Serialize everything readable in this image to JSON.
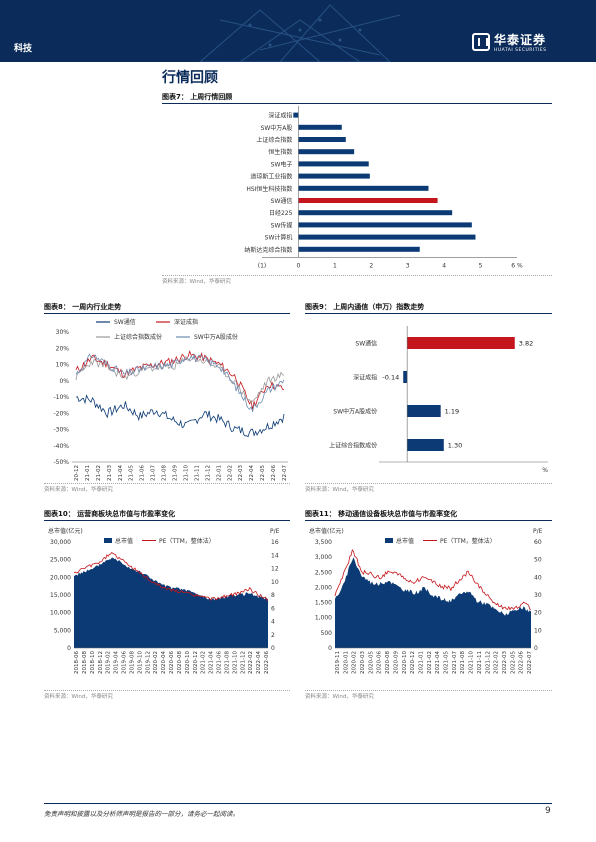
{
  "header": {
    "sector": "科技",
    "logo_cn": "华泰证券",
    "logo_en": "HUATAI SECURITIES"
  },
  "section_title": "行情回顾",
  "fig7": {
    "title": "图表7： 上周行情回顾",
    "source": "资料来源：Wind，华泰研究",
    "chart_data": {
      "type": "bar",
      "orientation": "horizontal",
      "categories": [
        "深证成指",
        "SW中万A股",
        "上证综合指数",
        "恒生指数",
        "SW电子",
        "道琼斯工业指数",
        "HSI恒生科技指数",
        "SW通信",
        "日经225",
        "SW传媒",
        "SW计算机",
        "纳斯达克综合指数"
      ],
      "values": [
        -0.14,
        1.19,
        1.3,
        1.53,
        1.93,
        1.96,
        3.57,
        3.82,
        4.22,
        4.76,
        4.86,
        3.33
      ],
      "highlight": "SW通信",
      "xlim": [
        -1,
        6
      ],
      "ticks": [
        "(1)",
        "0",
        "1",
        "2",
        "3",
        "4",
        "5",
        "6 %"
      ],
      "colors": {
        "bar": "#0b3a75",
        "highlight": "#c4161c"
      }
    }
  },
  "fig8": {
    "title": "图表8： 一周内行业走势",
    "source": "资料来源：Wind，华泰研究",
    "chart_data": {
      "type": "line",
      "series": [
        {
          "name": "SW通信",
          "color": "#0b3a75"
        },
        {
          "name": "深证成指",
          "color": "#c4161c"
        },
        {
          "name": "上证综合指数成份",
          "color": "#999999"
        },
        {
          "name": "SW中万A股成份",
          "color": "#6e8bb0"
        }
      ],
      "y_ticks": [
        "30%",
        "20%",
        "10%",
        "0%",
        "-10%",
        "-20%",
        "-30%",
        "-40%",
        "-50%"
      ],
      "ylim": [
        -50,
        30
      ],
      "x_ticks": [
        "2020-12",
        "2021-01",
        "2021-02",
        "2021-03",
        "2021-04",
        "2021-05",
        "2021-06",
        "2021-07",
        "2021-08",
        "2021-09",
        "2021-10",
        "2021-11",
        "2021-12",
        "2022-01",
        "2022-02",
        "2022-03",
        "2022-04",
        "2022-05",
        "2022-06",
        "2022-07"
      ]
    }
  },
  "fig9": {
    "title": "图表9： 上周内通信（申万）指数走势",
    "source": "资料来源：Wind，华泰研究",
    "chart_data": {
      "type": "bar",
      "orientation": "horizontal",
      "categories": [
        "SW通信",
        "深证成指",
        "SW中万A股成份",
        "上证综合指数成份"
      ],
      "values": [
        3.82,
        -0.14,
        1.19,
        1.3
      ],
      "labels": [
        "3.82",
        "-0.14",
        "1.19",
        "1.30"
      ],
      "xlim": [
        -1,
        5
      ],
      "ticks": [
        "(1)",
        "0",
        "1",
        "2",
        "3",
        "4",
        "5"
      ],
      "unit": "%",
      "colors": {
        "bar": "#0b3a75",
        "highlight": "#c4161c"
      }
    }
  },
  "fig10": {
    "title": "图表10： 运营商板块总市值与市盈率变化",
    "source": "资料来源：Wind，华泰研究",
    "chart_data": {
      "type": "area",
      "left_label": "总市值(亿元)",
      "right_label": "P/E",
      "series": [
        {
          "name": "总市值",
          "color": "#0b3a75"
        },
        {
          "name": "PE（TTM，整体法）",
          "color": "#c4161c"
        }
      ],
      "y_left_ticks": [
        "30,000",
        "25,000",
        "20,000",
        "15,000",
        "10,000",
        "5,000",
        "0"
      ],
      "y_right_ticks": [
        "16",
        "14",
        "12",
        "10",
        "8",
        "6",
        "4",
        "2",
        "0"
      ],
      "x_ticks": [
        "2018-06",
        "2018-08",
        "2018-10",
        "2018-12",
        "2019-02",
        "2019-04",
        "2019-06",
        "2019-08",
        "2019-10",
        "2019-12",
        "2020-02",
        "2020-04",
        "2020-06",
        "2020-08",
        "2020-10",
        "2020-12",
        "2021-02",
        "2021-04",
        "2021-06",
        "2021-08",
        "2021-10",
        "2021-12",
        "2022-02",
        "2022-04",
        "2022-06"
      ]
    }
  },
  "fig11": {
    "title": "图表11： 移动通信设备板块总市值与市盈率变化",
    "source": "资料来源：Wind，华泰研究",
    "chart_data": {
      "type": "area",
      "left_label": "总市值(亿元)",
      "right_label": "P/E",
      "series": [
        {
          "name": "总市值",
          "color": "#0b3a75"
        },
        {
          "name": "PE（TTM，整体法）",
          "color": "#c4161c"
        }
      ],
      "y_left_ticks": [
        "3,500",
        "3,000",
        "2,500",
        "2,000",
        "1,500",
        "1,000",
        "500",
        "0"
      ],
      "y_right_ticks": [
        "60",
        "50",
        "40",
        "30",
        "20",
        "10",
        "0"
      ],
      "x_ticks": [
        "2019-11",
        "2020-01",
        "2020-02",
        "2020-03",
        "2020-05",
        "2020-06",
        "2020-08",
        "2020-09",
        "2020-10",
        "2020-12",
        "2021-01",
        "2021-02",
        "2021-04",
        "2021-05",
        "2021-07",
        "2021-08",
        "2021-10",
        "2021-11",
        "2021-12",
        "2022-02",
        "2022-03",
        "2022-05",
        "2022-06",
        "2022-07"
      ]
    }
  },
  "footer": {
    "text": "免责声明和披露以及分析师声明是报告的一部分，请务必一起阅读。",
    "page": "9"
  }
}
